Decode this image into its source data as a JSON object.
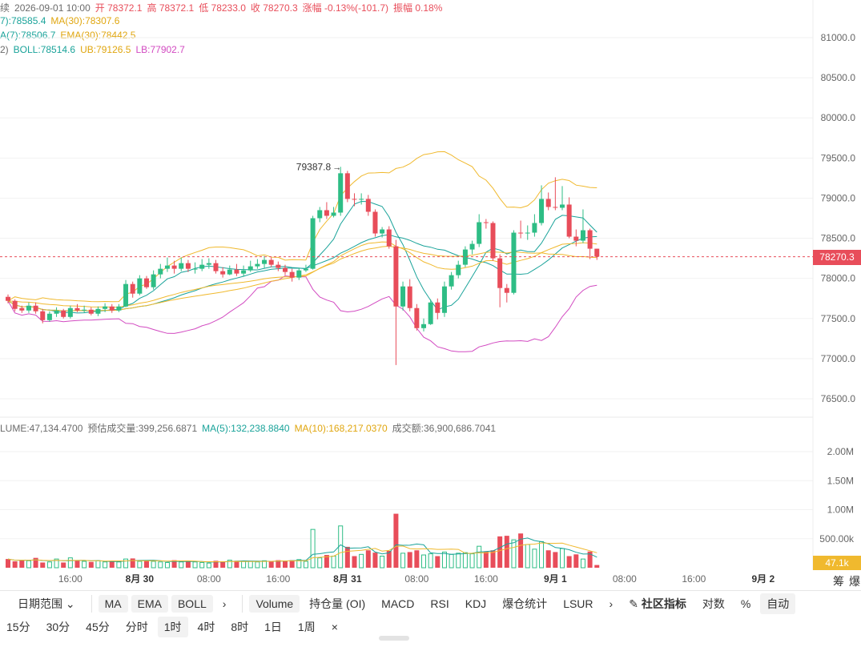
{
  "header": {
    "line1": [
      {
        "text": "续",
        "cls": "muted"
      },
      {
        "text": "2026-09-01 10:00",
        "cls": "muted"
      },
      {
        "text": "开 78372.1",
        "cls": "r"
      },
      {
        "text": "高 78372.1",
        "cls": "r"
      },
      {
        "text": "低 78233.0",
        "cls": "r"
      },
      {
        "text": "收 78270.3",
        "cls": "r"
      },
      {
        "text": "涨幅 -0.13%(-101.7)",
        "cls": "r"
      },
      {
        "text": "振幅 0.18%",
        "cls": "r"
      }
    ],
    "line2": [
      {
        "text": "7):78585.4",
        "cls": "g"
      },
      {
        "text": "MA(30):78307.6",
        "cls": "o"
      }
    ],
    "line3": [
      {
        "text": "A(7):78506.7",
        "cls": "g"
      },
      {
        "text": "EMA(30):78442.5",
        "cls": "o"
      }
    ],
    "line4": [
      {
        "text": "2)",
        "cls": "muted"
      },
      {
        "text": "BOLL:78514.6",
        "cls": "g"
      },
      {
        "text": "UB:79126.5",
        "cls": "o"
      },
      {
        "text": "LB:77902.7",
        "cls": "p"
      }
    ]
  },
  "volume_header": [
    {
      "text": "LUME:47,134.4700",
      "cls": "muted"
    },
    {
      "text": "预估成交量:399,256.6871",
      "cls": "muted"
    },
    {
      "text": "MA(5):132,238.8840",
      "cls": "g"
    },
    {
      "text": "MA(10):168,217.0370",
      "cls": "o"
    },
    {
      "text": "成交额:36,900,686.7041",
      "cls": "muted"
    }
  ],
  "price_badge": "78270.3",
  "volume_badge": "47.1k",
  "max_annotation": "79387.8",
  "colors": {
    "up": "#2ebd85",
    "down": "#e84d5a",
    "ma_green": "#1aa39a",
    "ma_orange": "#f0b92e",
    "lb_pink": "#d24ac1",
    "grid": "#f2f2f2"
  },
  "chart_data": {
    "type": "candlestick",
    "y_ticks": [
      "81000.0",
      "80500.0",
      "80000.0",
      "79500.0",
      "79000.0",
      "78500.0",
      "78000.0",
      "77500.0",
      "77000.0",
      "76500.0"
    ],
    "y_tick_values": [
      81000,
      80500,
      80000,
      79500,
      79000,
      78500,
      78000,
      77500,
      77000,
      76500
    ],
    "volume_ticks": [
      "2.00M",
      "1.50M",
      "1.00M",
      "500.00k"
    ],
    "volume_tick_values": [
      2000000,
      1500000,
      1000000,
      500000
    ],
    "x_labels": [
      {
        "text": "16:00",
        "bold": false,
        "slot": 9
      },
      {
        "text": "8月 30",
        "bold": true,
        "slot": 19
      },
      {
        "text": "08:00",
        "bold": false,
        "slot": 29
      },
      {
        "text": "16:00",
        "bold": false,
        "slot": 39
      },
      {
        "text": "8月 31",
        "bold": true,
        "slot": 49
      },
      {
        "text": "08:00",
        "bold": false,
        "slot": 59
      },
      {
        "text": "16:00",
        "bold": false,
        "slot": 69
      },
      {
        "text": "9月 1",
        "bold": true,
        "slot": 79
      },
      {
        "text": "08:00",
        "bold": false,
        "slot": 89
      },
      {
        "text": "16:00",
        "bold": false,
        "slot": 99
      },
      {
        "text": "9月 2",
        "bold": true,
        "slot": 109
      }
    ],
    "last_price": 78270.3,
    "candles": [
      [
        77770,
        77720,
        77800,
        77690
      ],
      [
        77720,
        77620,
        77740,
        77590
      ],
      [
        77630,
        77600,
        77660,
        77570
      ],
      [
        77600,
        77660,
        77700,
        77570
      ],
      [
        77660,
        77590,
        77700,
        77560
      ],
      [
        77590,
        77480,
        77620,
        77440
      ],
      [
        77480,
        77560,
        77590,
        77460
      ],
      [
        77560,
        77600,
        77640,
        77520
      ],
      [
        77600,
        77520,
        77620,
        77500
      ],
      [
        77520,
        77630,
        77660,
        77500
      ],
      [
        77630,
        77600,
        77680,
        77580
      ],
      [
        77600,
        77610,
        77660,
        77570
      ],
      [
        77610,
        77560,
        77640,
        77540
      ],
      [
        77560,
        77620,
        77650,
        77530
      ],
      [
        77620,
        77650,
        77690,
        77580
      ],
      [
        77650,
        77600,
        77680,
        77570
      ],
      [
        77600,
        77650,
        77680,
        77580
      ],
      [
        77650,
        77930,
        77980,
        77640
      ],
      [
        77930,
        77810,
        77960,
        77760
      ],
      [
        77810,
        78000,
        78040,
        77790
      ],
      [
        78000,
        77890,
        78030,
        77870
      ],
      [
        77890,
        78050,
        78100,
        77860
      ],
      [
        78050,
        78120,
        78180,
        78000
      ],
      [
        78120,
        78160,
        78260,
        78080
      ],
      [
        78160,
        78120,
        78220,
        78060
      ],
      [
        78120,
        78190,
        78260,
        78090
      ],
      [
        78190,
        78120,
        78230,
        78080
      ],
      [
        78120,
        78120,
        78200,
        78060
      ],
      [
        78120,
        78170,
        78240,
        78090
      ],
      [
        78170,
        78190,
        78250,
        78120
      ],
      [
        78190,
        78090,
        78230,
        78060
      ],
      [
        78090,
        78050,
        78140,
        78010
      ],
      [
        78050,
        78110,
        78160,
        78040
      ],
      [
        78110,
        78060,
        78180,
        78030
      ],
      [
        78060,
        78100,
        78160,
        78020
      ],
      [
        78100,
        78150,
        78220,
        78080
      ],
      [
        78150,
        78180,
        78240,
        78120
      ],
      [
        78180,
        78230,
        78280,
        78130
      ],
      [
        78230,
        78170,
        78260,
        78140
      ],
      [
        78170,
        78130,
        78210,
        78090
      ],
      [
        78130,
        78080,
        78170,
        78040
      ],
      [
        78080,
        78010,
        78120,
        77960
      ],
      [
        78010,
        78100,
        78130,
        77980
      ],
      [
        78100,
        78120,
        78170,
        78080
      ],
      [
        78120,
        78750,
        78780,
        78110
      ],
      [
        78750,
        78850,
        78890,
        78700
      ],
      [
        78850,
        78780,
        78950,
        78740
      ],
      [
        78780,
        78820,
        78890,
        78760
      ],
      [
        78820,
        79310,
        79390,
        78780
      ],
      [
        79310,
        78990,
        79340,
        78950
      ],
      [
        78990,
        78980,
        79060,
        78900
      ],
      [
        78980,
        78990,
        79060,
        78920
      ],
      [
        78990,
        78830,
        79040,
        78780
      ],
      [
        78830,
        78560,
        78860,
        78520
      ],
      [
        78560,
        78610,
        78640,
        78510
      ],
      [
        78610,
        78400,
        78650,
        78370
      ],
      [
        78400,
        77650,
        78480,
        76920
      ],
      [
        77650,
        77900,
        77960,
        77600
      ],
      [
        77900,
        77630,
        77990,
        77590
      ],
      [
        77630,
        77380,
        77680,
        77350
      ],
      [
        77380,
        77430,
        77500,
        77340
      ],
      [
        77430,
        77700,
        77740,
        77420
      ],
      [
        77700,
        77570,
        77750,
        77490
      ],
      [
        77570,
        77900,
        77960,
        77520
      ],
      [
        77900,
        78040,
        78080,
        77860
      ],
      [
        78040,
        78170,
        78220,
        78000
      ],
      [
        78170,
        78360,
        78400,
        78140
      ],
      [
        78360,
        78430,
        78470,
        78300
      ],
      [
        78430,
        78700,
        78800,
        78390
      ],
      [
        78700,
        78690,
        78740,
        78620
      ],
      [
        78690,
        78250,
        78710,
        78220
      ],
      [
        78250,
        77880,
        78300,
        77640
      ],
      [
        77880,
        77820,
        77930,
        77700
      ],
      [
        77820,
        78570,
        78600,
        77800
      ],
      [
        78570,
        78560,
        78720,
        78500
      ],
      [
        78560,
        78570,
        78660,
        78480
      ],
      [
        78570,
        78690,
        78800,
        78520
      ],
      [
        78690,
        78990,
        79160,
        78660
      ],
      [
        78990,
        78890,
        79070,
        78850
      ],
      [
        78890,
        78880,
        79260,
        78850
      ],
      [
        78880,
        78920,
        79150,
        78850
      ],
      [
        78920,
        78520,
        79010,
        78500
      ],
      [
        78520,
        78470,
        78610,
        78400
      ],
      [
        78470,
        78600,
        78860,
        78440
      ],
      [
        78600,
        78370,
        78620,
        78240
      ],
      [
        78370,
        78270,
        78370,
        78230
      ]
    ],
    "volumes": [
      150000,
      110000,
      130000,
      120000,
      170000,
      90000,
      100000,
      150000,
      90000,
      170000,
      120000,
      110000,
      100000,
      120000,
      100000,
      110000,
      100000,
      150000,
      160000,
      110000,
      120000,
      110000,
      100000,
      90000,
      130000,
      100000,
      110000,
      100000,
      90000,
      80000,
      120000,
      110000,
      130000,
      120000,
      110000,
      110000,
      100000,
      120000,
      110000,
      130000,
      120000,
      130000,
      140000,
      110000,
      660000,
      170000,
      220000,
      200000,
      720000,
      360000,
      200000,
      230000,
      300000,
      260000,
      200000,
      290000,
      930000,
      250000,
      270000,
      300000,
      220000,
      240000,
      200000,
      270000,
      230000,
      250000,
      260000,
      240000,
      370000,
      280000,
      300000,
      540000,
      550000,
      480000,
      590000,
      400000,
      320000,
      450000,
      300000,
      270000,
      330000,
      200000,
      230000,
      150000,
      280000,
      47000
    ]
  }
}
